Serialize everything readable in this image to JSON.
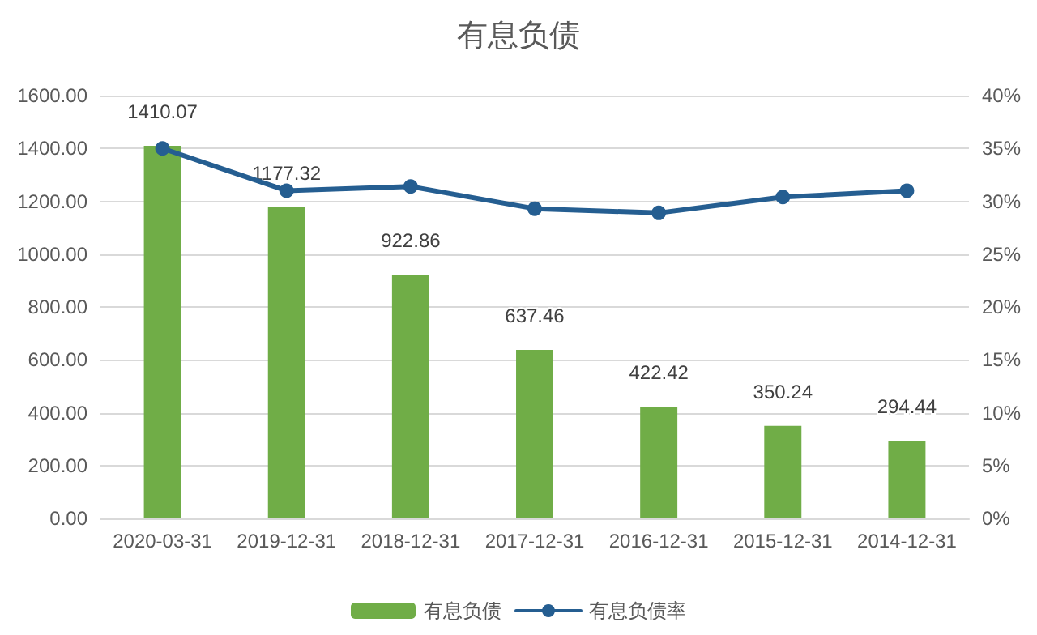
{
  "chart_data": {
    "type": "bar",
    "title": "有息负债",
    "categories": [
      "2020-03-31",
      "2019-12-31",
      "2018-12-31",
      "2017-12-31",
      "2016-12-31",
      "2015-12-31",
      "2014-12-31"
    ],
    "series": [
      {
        "name": "有息负债",
        "color": "#70ad47",
        "values": [
          1410.07,
          1177.32,
          922.86,
          637.46,
          422.42,
          350.24,
          294.44
        ],
        "value_labels": [
          "1410.07",
          "1177.32",
          "922.86",
          "637.46",
          "422.42",
          "350.24",
          "294.44"
        ]
      },
      {
        "name": "有息负债率",
        "type": "line",
        "axis": "y2",
        "color": "#255e91",
        "values": [
          35.0,
          31.0,
          31.4,
          29.3,
          28.9,
          30.4,
          31.0
        ]
      }
    ],
    "ylim": [
      0,
      1600
    ],
    "yticks": [
      {
        "value": 0,
        "label": "0.00"
      },
      {
        "value": 200,
        "label": "200.00"
      },
      {
        "value": 400,
        "label": "400.00"
      },
      {
        "value": 600,
        "label": "600.00"
      },
      {
        "value": 800,
        "label": "800.00"
      },
      {
        "value": 1000,
        "label": "1000.00"
      },
      {
        "value": 1200,
        "label": "1200.00"
      },
      {
        "value": 1400,
        "label": "1400.00"
      },
      {
        "value": 1600,
        "label": "1600.00"
      }
    ],
    "y2lim": [
      0,
      40
    ],
    "y2ticks": [
      {
        "value": 0,
        "label": "0%"
      },
      {
        "value": 5,
        "label": "5%"
      },
      {
        "value": 10,
        "label": "10%"
      },
      {
        "value": 15,
        "label": "15%"
      },
      {
        "value": 20,
        "label": "20%"
      },
      {
        "value": 25,
        "label": "25%"
      },
      {
        "value": 30,
        "label": "30%"
      },
      {
        "value": 35,
        "label": "35%"
      },
      {
        "value": 40,
        "label": "40%"
      }
    ],
    "grid": "y",
    "legend": "bottom",
    "marker": "circle",
    "line_style": "solid"
  }
}
